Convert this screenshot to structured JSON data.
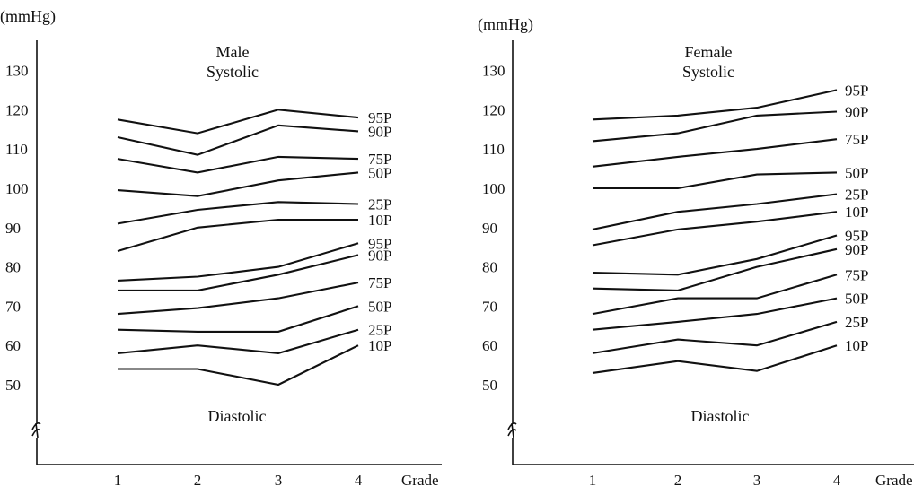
{
  "chart_data": [
    {
      "type": "line",
      "unit_label": "(mmHg)",
      "title_lines": [
        "Male",
        "Systolic"
      ],
      "bottom_label": "Diastolic",
      "xlabel": "Grade",
      "x_ticks": [
        "1",
        "2",
        "3",
        "4"
      ],
      "y_ticks": [
        "130",
        "120",
        "110",
        "100",
        "90",
        "80",
        "70",
        "60",
        "50"
      ],
      "y_tick_values": [
        130,
        120,
        110,
        100,
        90,
        80,
        70,
        60,
        50
      ],
      "ylim": [
        50,
        130
      ],
      "axis_break": true,
      "series": [
        {
          "name": "95P",
          "group": "Systolic",
          "values": [
            117.5,
            114,
            120,
            118
          ]
        },
        {
          "name": "90P",
          "group": "Systolic",
          "values": [
            113,
            108.5,
            116,
            114.5
          ]
        },
        {
          "name": "75P",
          "group": "Systolic",
          "values": [
            107.5,
            104,
            108,
            107.5
          ]
        },
        {
          "name": "50P",
          "group": "Systolic",
          "values": [
            99.5,
            98,
            102,
            104
          ]
        },
        {
          "name": "25P",
          "group": "Systolic",
          "values": [
            91,
            94.5,
            96.5,
            96
          ]
        },
        {
          "name": "10P",
          "group": "Systolic",
          "values": [
            84,
            90,
            92,
            92
          ]
        },
        {
          "name": "95P",
          "group": "Diastolic",
          "values": [
            76.5,
            77.5,
            80,
            86
          ]
        },
        {
          "name": "90P",
          "group": "Diastolic",
          "values": [
            74,
            74,
            78,
            83
          ]
        },
        {
          "name": "75P",
          "group": "Diastolic",
          "values": [
            68,
            69.5,
            72,
            76
          ]
        },
        {
          "name": "50P",
          "group": "Diastolic",
          "values": [
            64,
            63.5,
            63.5,
            70
          ]
        },
        {
          "name": "25P",
          "group": "Diastolic",
          "values": [
            58,
            60,
            58,
            64
          ]
        },
        {
          "name": "10P",
          "group": "Diastolic",
          "values": [
            54,
            54,
            50,
            60
          ]
        }
      ]
    },
    {
      "type": "line",
      "unit_label": "(mmHg)",
      "title_lines": [
        "Female",
        "Systolic"
      ],
      "bottom_label": "Diastolic",
      "xlabel": "Grade",
      "x_ticks": [
        "1",
        "2",
        "3",
        "4"
      ],
      "y_ticks": [
        "130",
        "120",
        "110",
        "100",
        "90",
        "80",
        "70",
        "60",
        "50"
      ],
      "y_tick_values": [
        130,
        120,
        110,
        100,
        90,
        80,
        70,
        60,
        50
      ],
      "ylim": [
        50,
        130
      ],
      "axis_break": true,
      "series": [
        {
          "name": "95P",
          "group": "Systolic",
          "values": [
            117.5,
            118.5,
            120.5,
            125
          ]
        },
        {
          "name": "90P",
          "group": "Systolic",
          "values": [
            112,
            114,
            118.5,
            119.5
          ]
        },
        {
          "name": "75P",
          "group": "Systolic",
          "values": [
            105.5,
            108,
            110,
            112.5
          ]
        },
        {
          "name": "50P",
          "group": "Systolic",
          "values": [
            100,
            100,
            103.5,
            104
          ]
        },
        {
          "name": "25P",
          "group": "Systolic",
          "values": [
            89.5,
            94,
            96,
            98.5
          ]
        },
        {
          "name": "10P",
          "group": "Systolic",
          "values": [
            85.5,
            89.5,
            91.5,
            94
          ]
        },
        {
          "name": "95P",
          "group": "Diastolic",
          "values": [
            78.5,
            78,
            82,
            88
          ]
        },
        {
          "name": "90P",
          "group": "Diastolic",
          "values": [
            74.5,
            74,
            80,
            84.5
          ]
        },
        {
          "name": "75P",
          "group": "Diastolic",
          "values": [
            68,
            72,
            72,
            78
          ]
        },
        {
          "name": "50P",
          "group": "Diastolic",
          "values": [
            64,
            66,
            68,
            72
          ]
        },
        {
          "name": "25P",
          "group": "Diastolic",
          "values": [
            58,
            61.5,
            60,
            66
          ]
        },
        {
          "name": "10P",
          "group": "Diastolic",
          "values": [
            53,
            56,
            53.5,
            60
          ]
        }
      ]
    }
  ]
}
